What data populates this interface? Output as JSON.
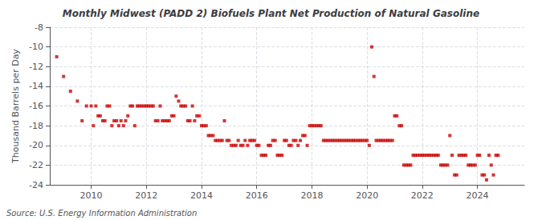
{
  "chart_data": {
    "type": "scatter",
    "title": "Monthly Midwest (PADD 2) Biofuels Plant Net Production of Natural Gasoline",
    "ylabel": "Thousand Barrels per Day",
    "annotations": [
      "Source: U.S. Energy Information Administration"
    ],
    "color": "#cc0000",
    "marker": "square",
    "grid": true,
    "xlim": [
      2008.5,
      2025.7
    ],
    "xticks": [
      2010,
      2012,
      2014,
      2016,
      2018,
      2020,
      2022,
      2024
    ],
    "ylim": [
      -24,
      -8
    ],
    "yticks": [
      -8,
      -10,
      -12,
      -14,
      -16,
      -18,
      -20,
      -22,
      -24
    ],
    "x": [
      2008.75,
      2009.0,
      2009.25,
      2009.5,
      2009.67,
      2009.83,
      2010.0,
      2010.08,
      2010.17,
      2010.25,
      2010.33,
      2010.42,
      2010.5,
      2010.58,
      2010.67,
      2010.75,
      2010.83,
      2010.92,
      2011.0,
      2011.08,
      2011.17,
      2011.25,
      2011.33,
      2011.42,
      2011.5,
      2011.58,
      2011.67,
      2011.75,
      2011.83,
      2011.92,
      2012.0,
      2012.08,
      2012.17,
      2012.25,
      2012.33,
      2012.42,
      2012.5,
      2012.58,
      2012.67,
      2012.75,
      2012.83,
      2012.92,
      2013.0,
      2013.08,
      2013.17,
      2013.25,
      2013.33,
      2013.42,
      2013.5,
      2013.58,
      2013.67,
      2013.75,
      2013.83,
      2013.92,
      2014.0,
      2014.08,
      2014.17,
      2014.25,
      2014.33,
      2014.42,
      2014.5,
      2014.58,
      2014.67,
      2014.75,
      2014.83,
      2014.92,
      2015.0,
      2015.08,
      2015.17,
      2015.25,
      2015.33,
      2015.42,
      2015.5,
      2015.58,
      2015.67,
      2015.75,
      2015.83,
      2015.92,
      2016.0,
      2016.08,
      2016.17,
      2016.25,
      2016.33,
      2016.42,
      2016.5,
      2016.58,
      2016.67,
      2016.75,
      2016.83,
      2016.92,
      2017.0,
      2017.08,
      2017.17,
      2017.25,
      2017.33,
      2017.42,
      2017.5,
      2017.58,
      2017.67,
      2017.75,
      2017.83,
      2017.92,
      2018.0,
      2018.08,
      2018.17,
      2018.25,
      2018.33,
      2018.42,
      2018.5,
      2018.58,
      2018.67,
      2018.75,
      2018.83,
      2018.92,
      2019.0,
      2019.08,
      2019.17,
      2019.25,
      2019.33,
      2019.42,
      2019.5,
      2019.58,
      2019.67,
      2019.75,
      2019.83,
      2019.92,
      2020.0,
      2020.08,
      2020.17,
      2020.25,
      2020.33,
      2020.42,
      2020.5,
      2020.58,
      2020.67,
      2020.75,
      2020.83,
      2020.92,
      2021.0,
      2021.08,
      2021.17,
      2021.25,
      2021.33,
      2021.42,
      2021.5,
      2021.58,
      2021.67,
      2021.75,
      2021.83,
      2021.92,
      2022.0,
      2022.08,
      2022.17,
      2022.25,
      2022.33,
      2022.42,
      2022.5,
      2022.58,
      2022.67,
      2022.75,
      2022.83,
      2022.92,
      2023.0,
      2023.08,
      2023.17,
      2023.25,
      2023.33,
      2023.42,
      2023.5,
      2023.58,
      2023.67,
      2023.75,
      2023.83,
      2023.92,
      2024.0,
      2024.08,
      2024.17,
      2024.25,
      2024.33,
      2024.42,
      2024.5,
      2024.58,
      2024.67,
      2024.75
    ],
    "values": [
      -11.0,
      -13.0,
      -14.5,
      -15.5,
      -17.5,
      -16.0,
      -16.0,
      -18.0,
      -16.0,
      -17.0,
      -17.0,
      -17.5,
      -17.5,
      -16.0,
      -16.0,
      -18.0,
      -17.5,
      -17.5,
      -18.0,
      -17.5,
      -18.0,
      -17.5,
      -17.0,
      -16.0,
      -16.0,
      -18.0,
      -16.0,
      -16.0,
      -16.0,
      -16.0,
      -16.0,
      -16.0,
      -16.0,
      -16.0,
      -17.5,
      -17.5,
      -16.0,
      -17.5,
      -17.5,
      -17.5,
      -17.5,
      -17.0,
      -17.0,
      -15.0,
      -15.5,
      -16.0,
      -16.0,
      -16.0,
      -17.5,
      -17.5,
      -16.0,
      -17.5,
      -17.0,
      -17.0,
      -18.0,
      -18.0,
      -18.0,
      -19.0,
      -19.0,
      -19.0,
      -19.5,
      -19.5,
      -19.5,
      -19.5,
      -17.5,
      -19.5,
      -19.5,
      -20.0,
      -20.0,
      -20.0,
      -19.5,
      -20.0,
      -20.0,
      -19.5,
      -20.0,
      -19.5,
      -19.5,
      -19.5,
      -20.0,
      -20.0,
      -21.0,
      -21.0,
      -21.0,
      -20.0,
      -20.0,
      -19.5,
      -19.5,
      -21.0,
      -21.0,
      -21.0,
      -19.5,
      -19.5,
      -20.0,
      -20.0,
      -19.5,
      -19.5,
      -20.0,
      -19.5,
      -19.0,
      -19.0,
      -20.0,
      -18.0,
      -18.0,
      -18.0,
      -18.0,
      -18.0,
      -18.0,
      -19.5,
      -19.5,
      -19.5,
      -19.5,
      -19.5,
      -19.5,
      -19.5,
      -19.5,
      -19.5,
      -19.5,
      -19.5,
      -19.5,
      -19.5,
      -19.5,
      -19.5,
      -19.5,
      -19.5,
      -19.5,
      -19.5,
      -19.5,
      -20.0,
      -10.0,
      -13.0,
      -19.5,
      -19.5,
      -19.5,
      -19.5,
      -19.5,
      -19.5,
      -19.5,
      -19.5,
      -17.0,
      -17.0,
      -18.0,
      -18.0,
      -22.0,
      -22.0,
      -22.0,
      -22.0,
      -21.0,
      -21.0,
      -21.0,
      -21.0,
      -21.0,
      -21.0,
      -21.0,
      -21.0,
      -21.0,
      -21.0,
      -21.0,
      -21.0,
      -22.0,
      -22.0,
      -22.0,
      -22.0,
      -19.0,
      -21.0,
      -23.0,
      -23.0,
      -21.0,
      -21.0,
      -21.0,
      -21.0,
      -22.0,
      -22.0,
      -22.0,
      -22.0,
      -21.0,
      -21.0,
      -23.0,
      -23.0,
      -23.5,
      -21.0,
      -22.0,
      -23.0,
      -21.0,
      -21.0
    ]
  }
}
